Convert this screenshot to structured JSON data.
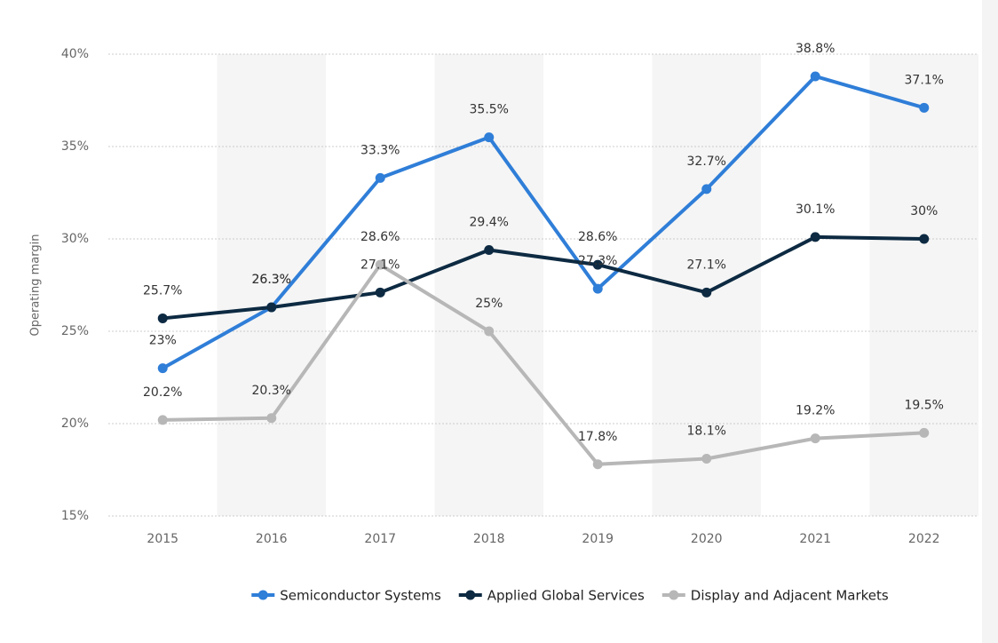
{
  "chart_data": {
    "type": "line",
    "y_label": "Operating margin",
    "categories": [
      "2015",
      "2016",
      "2017",
      "2018",
      "2019",
      "2020",
      "2021",
      "2022"
    ],
    "series": [
      {
        "name": "Semiconductor Systems",
        "color": "#2f7ed8",
        "values": [
          23,
          26.3,
          33.3,
          35.5,
          27.3,
          32.7,
          38.8,
          37.1
        ],
        "value_labels": [
          "23%",
          "26.3%",
          "33.3%",
          "35.5%",
          "27.3%",
          "32.7%",
          "38.8%",
          "37.1%"
        ]
      },
      {
        "name": "Applied Global Services",
        "color": "#0d2a42",
        "values": [
          25.7,
          26.3,
          27.1,
          29.4,
          28.6,
          27.1,
          30.1,
          30
        ],
        "value_labels": [
          "25.7%",
          "26.3%",
          "27.1%",
          "29.4%",
          "28.6%",
          "27.1%",
          "30.1%",
          "30%"
        ]
      },
      {
        "name": "Display and Adjacent Markets",
        "color": "#b7b7b7",
        "values": [
          20.2,
          20.3,
          28.6,
          25,
          17.8,
          18.1,
          19.2,
          19.5
        ],
        "value_labels": [
          "20.2%",
          "20.3%",
          "28.6%",
          "25%",
          "17.8%",
          "18.1%",
          "19.2%",
          "19.5%"
        ]
      }
    ],
    "ylim": [
      15,
      40
    ],
    "yticks": [
      {
        "value": 15,
        "label": "15%"
      },
      {
        "value": 20,
        "label": "20%"
      },
      {
        "value": 25,
        "label": "25%"
      },
      {
        "value": 30,
        "label": "30%"
      },
      {
        "value": 35,
        "label": "35%"
      },
      {
        "value": 40,
        "label": "40%"
      }
    ],
    "grid": true,
    "legend": "bottom"
  }
}
